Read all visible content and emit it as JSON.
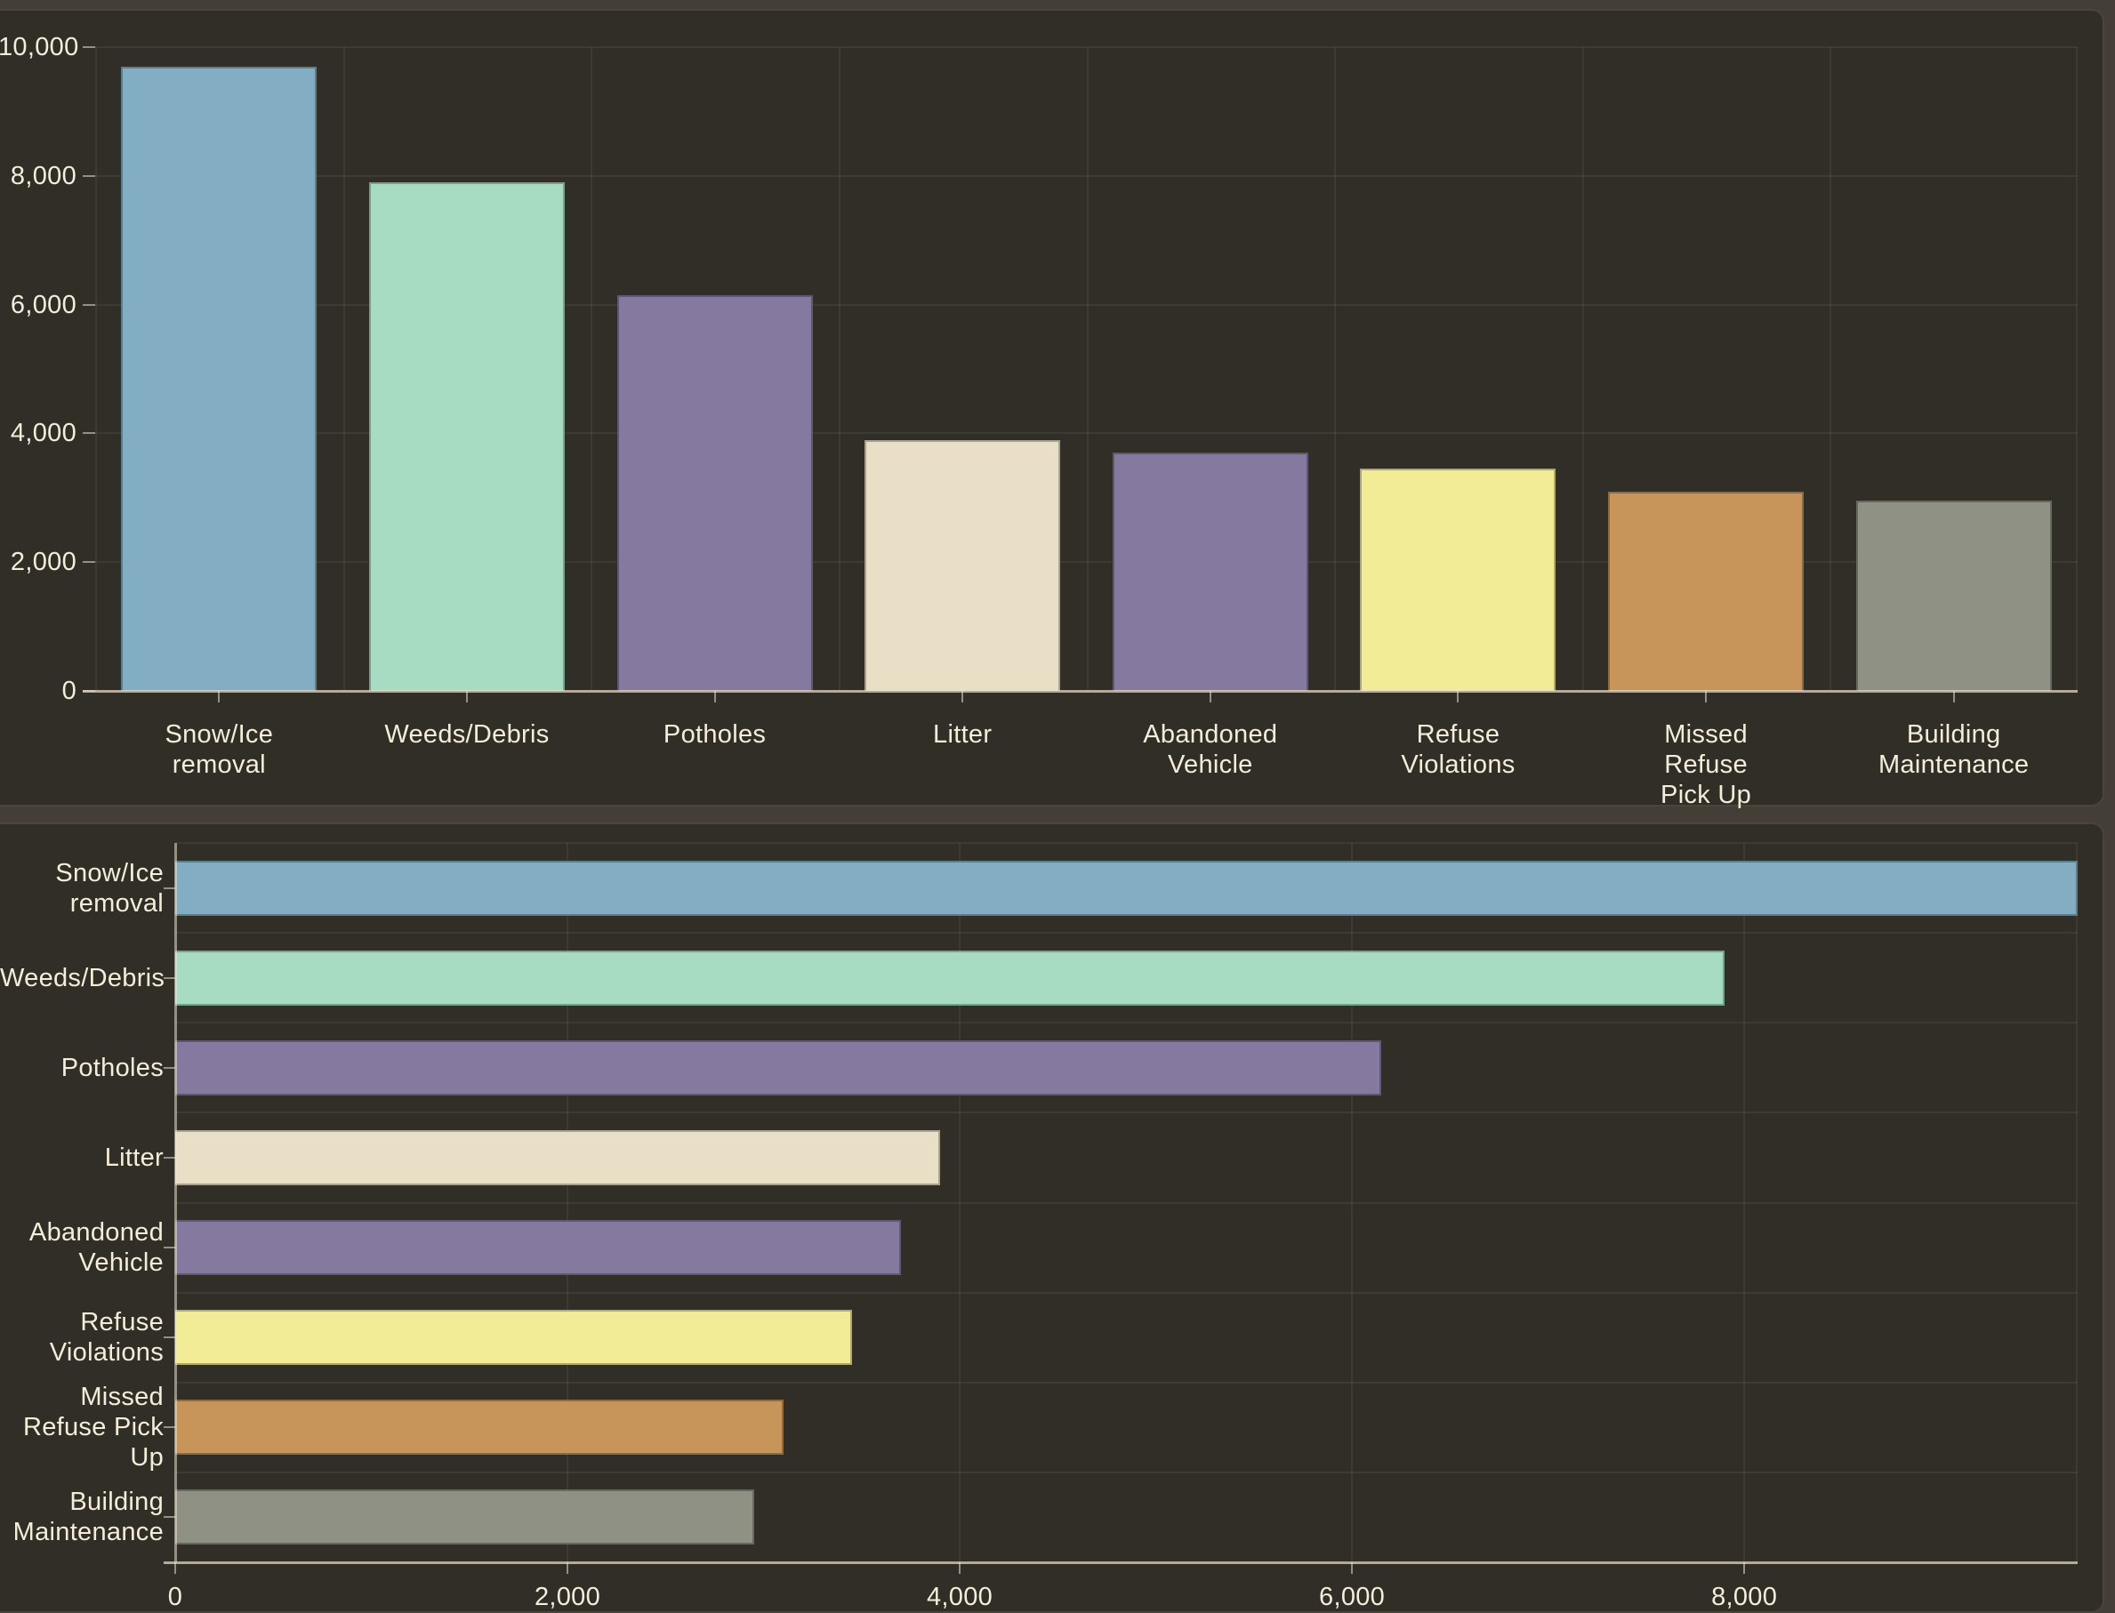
{
  "page": {
    "background": "#453e36",
    "panel_background": "#312d27",
    "grid_color": "#3c372e",
    "axis_color": "#e9e1cd",
    "text_color": "#f4edda",
    "panel_border_color": "#4a443a"
  },
  "chart_data": [
    {
      "id": "complaints-column-chart",
      "type": "bar",
      "orientation": "vertical",
      "title": "",
      "categories": [
        "Snow/Ice removal",
        "Weeds/Debris",
        "Potholes",
        "Litter",
        "Abandoned Vehicle",
        "Refuse Violations",
        "Missed Refuse Pick Up",
        "Building Maintenance"
      ],
      "values": [
        9700,
        7900,
        6150,
        3900,
        3700,
        3450,
        3100,
        2950
      ],
      "bar_colors": [
        "#83adc3",
        "#a7dcc3",
        "#86799f",
        "#e9dfc7",
        "#86799f",
        "#f3ec96",
        "#c7955a",
        "#8f9184"
      ],
      "category_label_lines": [
        [
          "Snow/Ice",
          "removal"
        ],
        [
          "Weeds/Debris"
        ],
        [
          "Potholes"
        ],
        [
          "Litter"
        ],
        [
          "Abandoned",
          "Vehicle"
        ],
        [
          "Refuse",
          "Violations"
        ],
        [
          "Missed",
          "Refuse",
          "Pick Up"
        ],
        [
          "Building",
          "Maintenance"
        ]
      ],
      "ylabel": "",
      "ylim": [
        0,
        10000
      ],
      "yticks": [
        {
          "value": 0,
          "label": "0"
        },
        {
          "value": 2000,
          "label": "2,000"
        },
        {
          "value": 4000,
          "label": "4,000"
        },
        {
          "value": 6000,
          "label": "6,000"
        },
        {
          "value": 8000,
          "label": "8,000"
        },
        {
          "value": 10000,
          "label": "10,000"
        }
      ],
      "grid": true,
      "legend": false
    },
    {
      "id": "complaints-bar-chart",
      "type": "bar",
      "orientation": "horizontal",
      "title": "",
      "categories": [
        "Snow/Ice removal",
        "Weeds/Debris",
        "Potholes",
        "Litter",
        "Abandoned Vehicle",
        "Refuse Violations",
        "Missed Refuse Pick Up",
        "Building Maintenance"
      ],
      "values": [
        9700,
        7900,
        6150,
        3900,
        3700,
        3450,
        3100,
        2950
      ],
      "bar_colors": [
        "#83adc3",
        "#a7dcc3",
        "#86799f",
        "#e9dfc7",
        "#86799f",
        "#f3ec96",
        "#c7955a",
        "#8f9184"
      ],
      "category_label_lines": [
        [
          "Snow/Ice",
          "removal"
        ],
        [
          "Weeds/Debris"
        ],
        [
          "Potholes"
        ],
        [
          "Litter"
        ],
        [
          "Abandoned",
          "Vehicle"
        ],
        [
          "Refuse",
          "Violations"
        ],
        [
          "Missed",
          "Refuse Pick",
          "Up"
        ],
        [
          "Building",
          "Maintenance"
        ]
      ],
      "xlabel": "",
      "xlim": [
        0,
        9700
      ],
      "xticks": [
        {
          "value": 0,
          "label": "0"
        },
        {
          "value": 2000,
          "label": "2,000"
        },
        {
          "value": 4000,
          "label": "4,000"
        },
        {
          "value": 6000,
          "label": "6,000"
        },
        {
          "value": 8000,
          "label": "8,000"
        }
      ],
      "grid": true,
      "legend": false
    }
  ]
}
